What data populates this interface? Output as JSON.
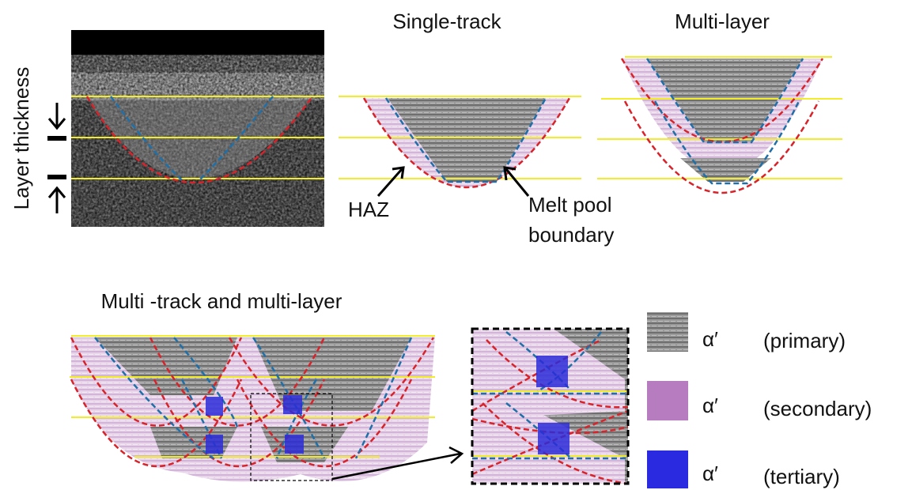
{
  "side_label": "Layer thickness",
  "panels": [
    {
      "title": "Single-track",
      "annotations": [
        "HAZ",
        "Melt pool",
        "boundary"
      ]
    },
    {
      "title": "Multi-layer"
    },
    {
      "title": "Multi -track and multi-layer"
    }
  ],
  "legend": [
    {
      "symbol": "α′",
      "label": "(primary)"
    },
    {
      "symbol": "α′",
      "label": "(secondary)"
    },
    {
      "symbol": "α′",
      "label": "(tertiary)"
    }
  ]
}
